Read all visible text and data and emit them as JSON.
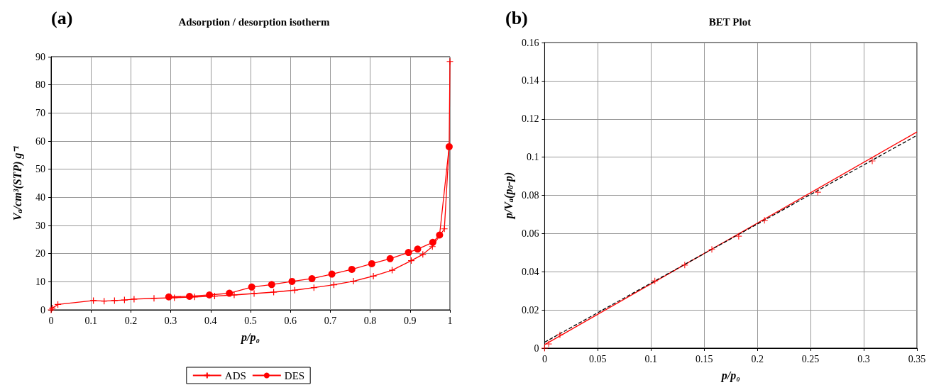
{
  "chart_data": [
    {
      "type": "line",
      "title": "Adsorption / desorption isotherm",
      "annotations": [
        "(a)"
      ],
      "xlabel": "p/p₀",
      "ylabel": "V$_{a}$/cm³(STP) g⁻¹",
      "xlim": [
        0,
        1
      ],
      "xticks": [
        0,
        0.1,
        0.2,
        0.3,
        0.4,
        0.5,
        0.6,
        0.7,
        0.8,
        0.9,
        1
      ],
      "ylim": [
        0,
        90
      ],
      "yticks": [
        0,
        10,
        20,
        30,
        40,
        50,
        60,
        70,
        80,
        90
      ],
      "grid": true,
      "legend": "bottom",
      "series": [
        {
          "name": "ADS",
          "color": "#ff0000",
          "marker": "cross",
          "x": [
            0,
            0.003,
            0.017,
            0.106,
            0.133,
            0.159,
            0.184,
            0.208,
            0.258,
            0.309,
            0.36,
            0.41,
            0.459,
            0.509,
            0.558,
            0.611,
            0.659,
            0.709,
            0.758,
            0.808,
            0.855,
            0.903,
            0.932,
            0.956,
            0.986,
            0.998,
            1.0
          ],
          "values": [
            0,
            0.6,
            1.9,
            3.3,
            3.1,
            3.3,
            3.5,
            3.8,
            4.1,
            4.3,
            4.6,
            4.9,
            5.3,
            5.8,
            6.3,
            7.0,
            7.9,
            8.9,
            10.2,
            12.0,
            14.1,
            17.5,
            19.7,
            22.5,
            28.8,
            58.4,
            88.3
          ]
        },
        {
          "name": "DES",
          "color": "#ff0000",
          "marker": "circle",
          "x": [
            0.295,
            0.347,
            0.397,
            0.447,
            0.503,
            0.553,
            0.604,
            0.654,
            0.704,
            0.754,
            0.804,
            0.85,
            0.896,
            0.919,
            0.957,
            0.974,
            0.998
          ],
          "values": [
            4.6,
            4.8,
            5.3,
            5.9,
            8.1,
            9.0,
            10.1,
            11.1,
            12.7,
            14.4,
            16.4,
            18.2,
            20.4,
            21.6,
            24.0,
            26.6,
            58.0
          ]
        }
      ]
    },
    {
      "type": "scatter",
      "title": "BET Plot",
      "annotations": [
        "(b)"
      ],
      "xlabel": "p/p₀",
      "ylabel": "p/V$_{a}$(p$_{0}$-p)",
      "xlim": [
        0,
        0.35
      ],
      "xticks": [
        0,
        0.05,
        0.1,
        0.15,
        0.2,
        0.25,
        0.3,
        0.35
      ],
      "ylim": [
        0,
        0.16
      ],
      "yticks": [
        0,
        0.02,
        0.04,
        0.06,
        0.08,
        0.1,
        0.12,
        0.14,
        0.16
      ],
      "grid": true,
      "series": [
        {
          "type": "scatter",
          "color": "#ff0000",
          "marker": "cross",
          "x": [
            0,
            0.0038,
            0.0144,
            0.1036,
            0.1317,
            0.1572,
            0.1824,
            0.2067,
            0.2568,
            0.308
          ],
          "values": [
            0,
            0.0022,
            0.007,
            0.0352,
            0.0435,
            0.0517,
            0.0586,
            0.0669,
            0.0816,
            0.098
          ]
        },
        {
          "type": "line",
          "color": "#ff0000",
          "line_style": "solid",
          "x": [
            0,
            0.35
          ],
          "values": [
            0.0018,
            0.1132
          ]
        },
        {
          "type": "line",
          "color": "#000000",
          "line_style": "dashed",
          "x": [
            0,
            0.35
          ],
          "values": [
            0.0031,
            0.1114
          ]
        }
      ]
    }
  ]
}
